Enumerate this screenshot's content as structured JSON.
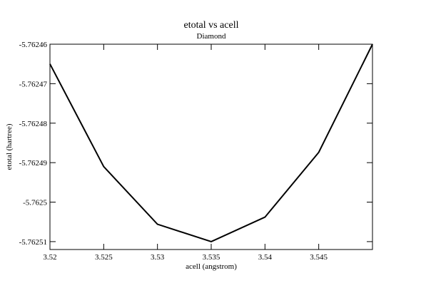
{
  "chart_data": {
    "type": "line",
    "title": "etotal vs acell",
    "subtitle": "Diamond",
    "x_label": "acell (angstrom)",
    "y_label": "etotal (hartree)",
    "x": [
      3.52,
      3.525,
      3.53,
      3.535,
      3.54,
      3.545,
      3.55
    ],
    "series": [
      {
        "color": "#000000",
        "values": [
          -5.762465,
          -5.762491,
          -5.7625056,
          -5.76251,
          -5.7625038,
          -5.7624874,
          -5.76246
        ]
      }
    ],
    "xlim": [
      3.52,
      3.55
    ],
    "xticks": [
      3.52,
      3.525,
      3.53,
      3.535,
      3.54,
      3.545
    ],
    "ylim": [
      -5.762512,
      -5.76246
    ],
    "yticks": [
      -5.76251,
      -5.7625,
      -5.76249,
      -5.76248,
      -5.76247,
      -5.76246
    ],
    "grid": false
  }
}
